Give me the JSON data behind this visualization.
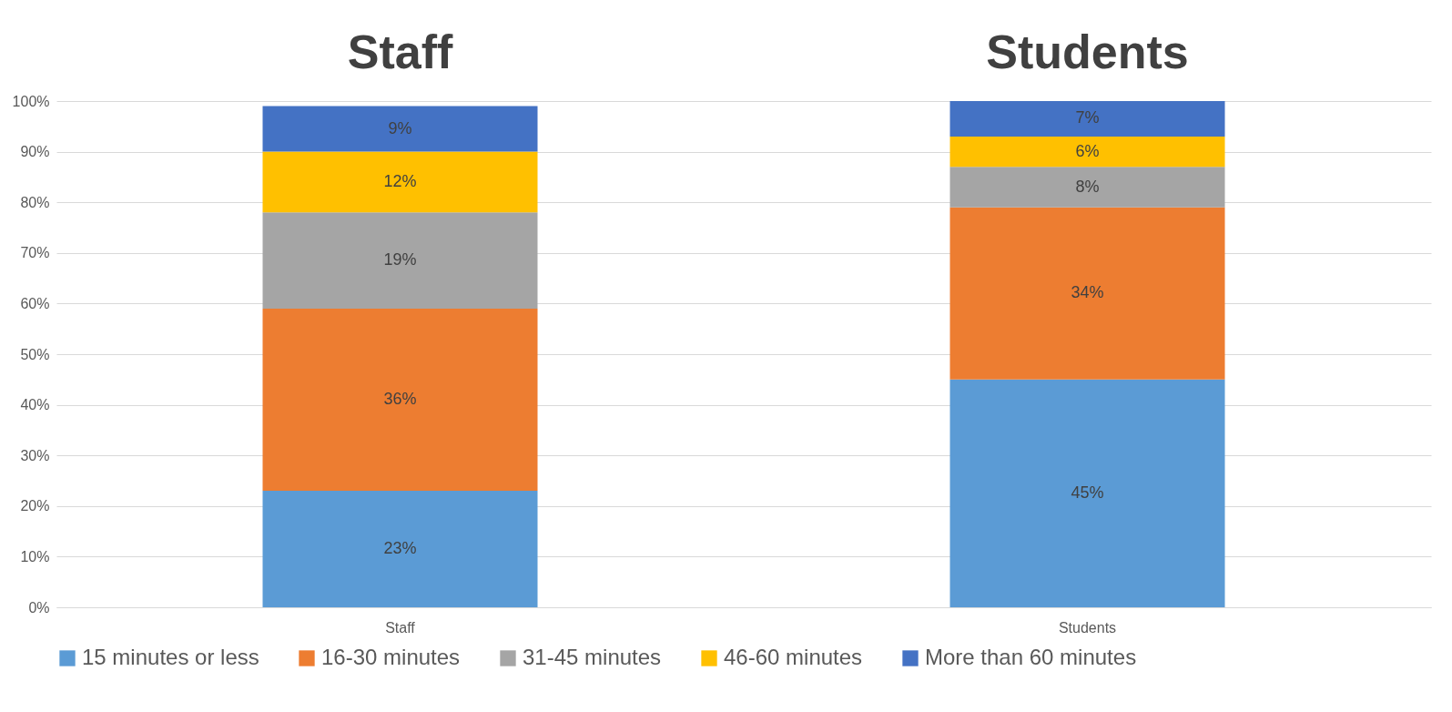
{
  "chart_data": {
    "type": "bar",
    "stacked": true,
    "categories": [
      "Staff",
      "Students"
    ],
    "series": [
      {
        "name": "15 minutes or less",
        "color": "#5b9bd5",
        "values": [
          23,
          45
        ],
        "value_labels": [
          "23%",
          "45%"
        ]
      },
      {
        "name": "16-30 minutes",
        "color": "#ed7d31",
        "values": [
          36,
          34
        ],
        "value_labels": [
          "36%",
          "34%"
        ]
      },
      {
        "name": "31-45 minutes",
        "color": "#a5a5a5",
        "values": [
          19,
          8
        ],
        "value_labels": [
          "19%",
          "8%"
        ]
      },
      {
        "name": "46-60 minutes",
        "color": "#ffc000",
        "values": [
          12,
          6
        ],
        "value_labels": [
          "12%",
          "6%"
        ]
      },
      {
        "name": "More than 60 minutes",
        "color": "#4472c4",
        "values": [
          9,
          7
        ],
        "value_labels": [
          "9%",
          "7%"
        ]
      }
    ],
    "ylim": [
      0,
      100
    ],
    "yticks": [
      {
        "value": 0,
        "label": "0%"
      },
      {
        "value": 10,
        "label": "10%"
      },
      {
        "value": 20,
        "label": "20%"
      },
      {
        "value": 30,
        "label": "30%"
      },
      {
        "value": 40,
        "label": "40%"
      },
      {
        "value": 50,
        "label": "50%"
      },
      {
        "value": 60,
        "label": "60%"
      },
      {
        "value": 70,
        "label": "70%"
      },
      {
        "value": 80,
        "label": "80%"
      },
      {
        "value": 90,
        "label": "90%"
      },
      {
        "value": 100,
        "label": "100%"
      }
    ],
    "annotations": [
      "Staff",
      "Students"
    ],
    "grid": "y",
    "legend": "bottom"
  }
}
